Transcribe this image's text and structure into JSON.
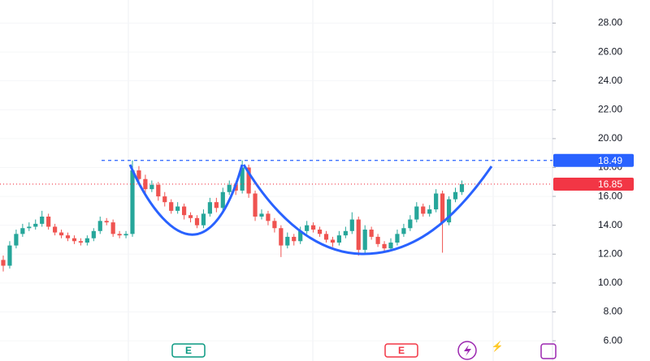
{
  "chart_data": {
    "type": "candlestick",
    "up_color": "#26a69a",
    "down_color": "#ef5350",
    "open": [
      11.6,
      11.2,
      12.6,
      13.4,
      13.8,
      13.9,
      14.1,
      14.6,
      13.9,
      13.5,
      13.3,
      13.1,
      12.9,
      12.8,
      13.1,
      13.6,
      14.3,
      14.2,
      13.4,
      13.3,
      13.4,
      17.8,
      17.2,
      16.5,
      16.8,
      16.0,
      15.6,
      15.0,
      15.3,
      14.7,
      14.5,
      14.0,
      14.8,
      15.6,
      15.2,
      16.3,
      16.8,
      16.4,
      18.0,
      16.2,
      14.6,
      14.8,
      14.3,
      13.8,
      12.6,
      13.2,
      12.9,
      13.6,
      14.0,
      13.7,
      13.4,
      13.0,
      12.8,
      13.3,
      13.6,
      14.4,
      12.3,
      13.7,
      13.2,
      12.7,
      12.4,
      12.8,
      13.4,
      13.8,
      14.4,
      15.3,
      14.8,
      15.1,
      16.2,
      14.2,
      15.8,
      16.3
    ],
    "high": [
      11.9,
      12.9,
      13.7,
      14.1,
      14.2,
      14.4,
      15.0,
      14.8,
      14.1,
      13.7,
      13.5,
      13.3,
      13.1,
      13.3,
      13.8,
      14.6,
      14.5,
      14.4,
      13.6,
      13.6,
      18.49,
      18.1,
      17.5,
      17.1,
      17.0,
      16.3,
      15.8,
      15.6,
      15.5,
      14.9,
      14.7,
      15.1,
      15.9,
      15.9,
      16.6,
      17.1,
      17.0,
      18.49,
      18.2,
      16.4,
      15.1,
      15.0,
      14.5,
      14.0,
      13.5,
      13.4,
      13.9,
      14.3,
      14.2,
      13.9,
      13.6,
      13.2,
      13.6,
      13.9,
      14.9,
      14.6,
      14.0,
      13.9,
      13.4,
      12.9,
      13.1,
      13.7,
      14.1,
      14.7,
      15.6,
      15.5,
      15.4,
      16.5,
      16.4,
      16.0,
      16.6,
      17.1
    ],
    "low": [
      10.8,
      11.0,
      12.4,
      13.2,
      13.6,
      13.7,
      13.9,
      13.7,
      13.3,
      13.1,
      12.9,
      12.7,
      12.6,
      12.6,
      12.9,
      13.4,
      14.0,
      13.2,
      13.1,
      13.1,
      13.2,
      16.9,
      16.2,
      16.3,
      15.7,
      15.3,
      14.8,
      14.8,
      14.4,
      14.2,
      13.8,
      13.8,
      14.6,
      14.9,
      15.0,
      16.1,
      16.1,
      16.2,
      15.9,
      14.3,
      14.4,
      14.0,
      13.5,
      11.8,
      12.4,
      12.6,
      12.7,
      13.4,
      13.5,
      13.2,
      12.8,
      12.5,
      12.6,
      13.1,
      13.4,
      11.9,
      12.1,
      13.0,
      12.5,
      12.2,
      12.2,
      12.6,
      13.2,
      13.6,
      14.2,
      14.6,
      14.6,
      14.9,
      12.1,
      14.0,
      15.6,
      16.1
    ],
    "close": [
      11.2,
      12.6,
      13.4,
      13.8,
      13.9,
      14.1,
      14.6,
      13.9,
      13.5,
      13.3,
      13.1,
      12.9,
      12.8,
      13.1,
      13.6,
      14.3,
      14.2,
      13.4,
      13.3,
      13.4,
      17.8,
      17.2,
      16.5,
      16.8,
      16.0,
      15.6,
      15.0,
      15.3,
      14.7,
      14.5,
      14.0,
      14.8,
      15.6,
      15.2,
      16.3,
      16.8,
      16.4,
      18.0,
      16.2,
      14.6,
      14.8,
      14.3,
      13.8,
      12.6,
      13.2,
      12.9,
      13.6,
      14.0,
      13.7,
      13.4,
      13.0,
      12.8,
      13.3,
      13.6,
      14.4,
      12.3,
      13.7,
      13.2,
      12.7,
      12.4,
      12.8,
      13.4,
      13.8,
      14.4,
      15.3,
      14.8,
      15.1,
      16.2,
      14.2,
      15.8,
      16.3,
      16.85
    ],
    "ylim": [
      4.6,
      29.6
    ],
    "yticks": [
      {
        "value": 6,
        "label": "6.00"
      },
      {
        "value": 8,
        "label": "8.00"
      },
      {
        "value": 10,
        "label": "10.00"
      },
      {
        "value": 12,
        "label": "12.00"
      },
      {
        "value": 14,
        "label": "14.00"
      },
      {
        "value": 16,
        "label": "16.00"
      },
      {
        "value": 18,
        "label": "18.00"
      },
      {
        "value": 20,
        "label": "20.00"
      },
      {
        "value": 22,
        "label": "22.00"
      },
      {
        "value": 24,
        "label": "24.00"
      },
      {
        "value": 26,
        "label": "26.00"
      },
      {
        "value": 28,
        "label": "28.00"
      }
    ],
    "grid": true,
    "price_lines": [
      {
        "value": 18.49,
        "color": "#2962ff"
      },
      {
        "value": 16.85,
        "color": "#f23645"
      }
    ],
    "event_markers": [
      "E",
      "E"
    ]
  }
}
